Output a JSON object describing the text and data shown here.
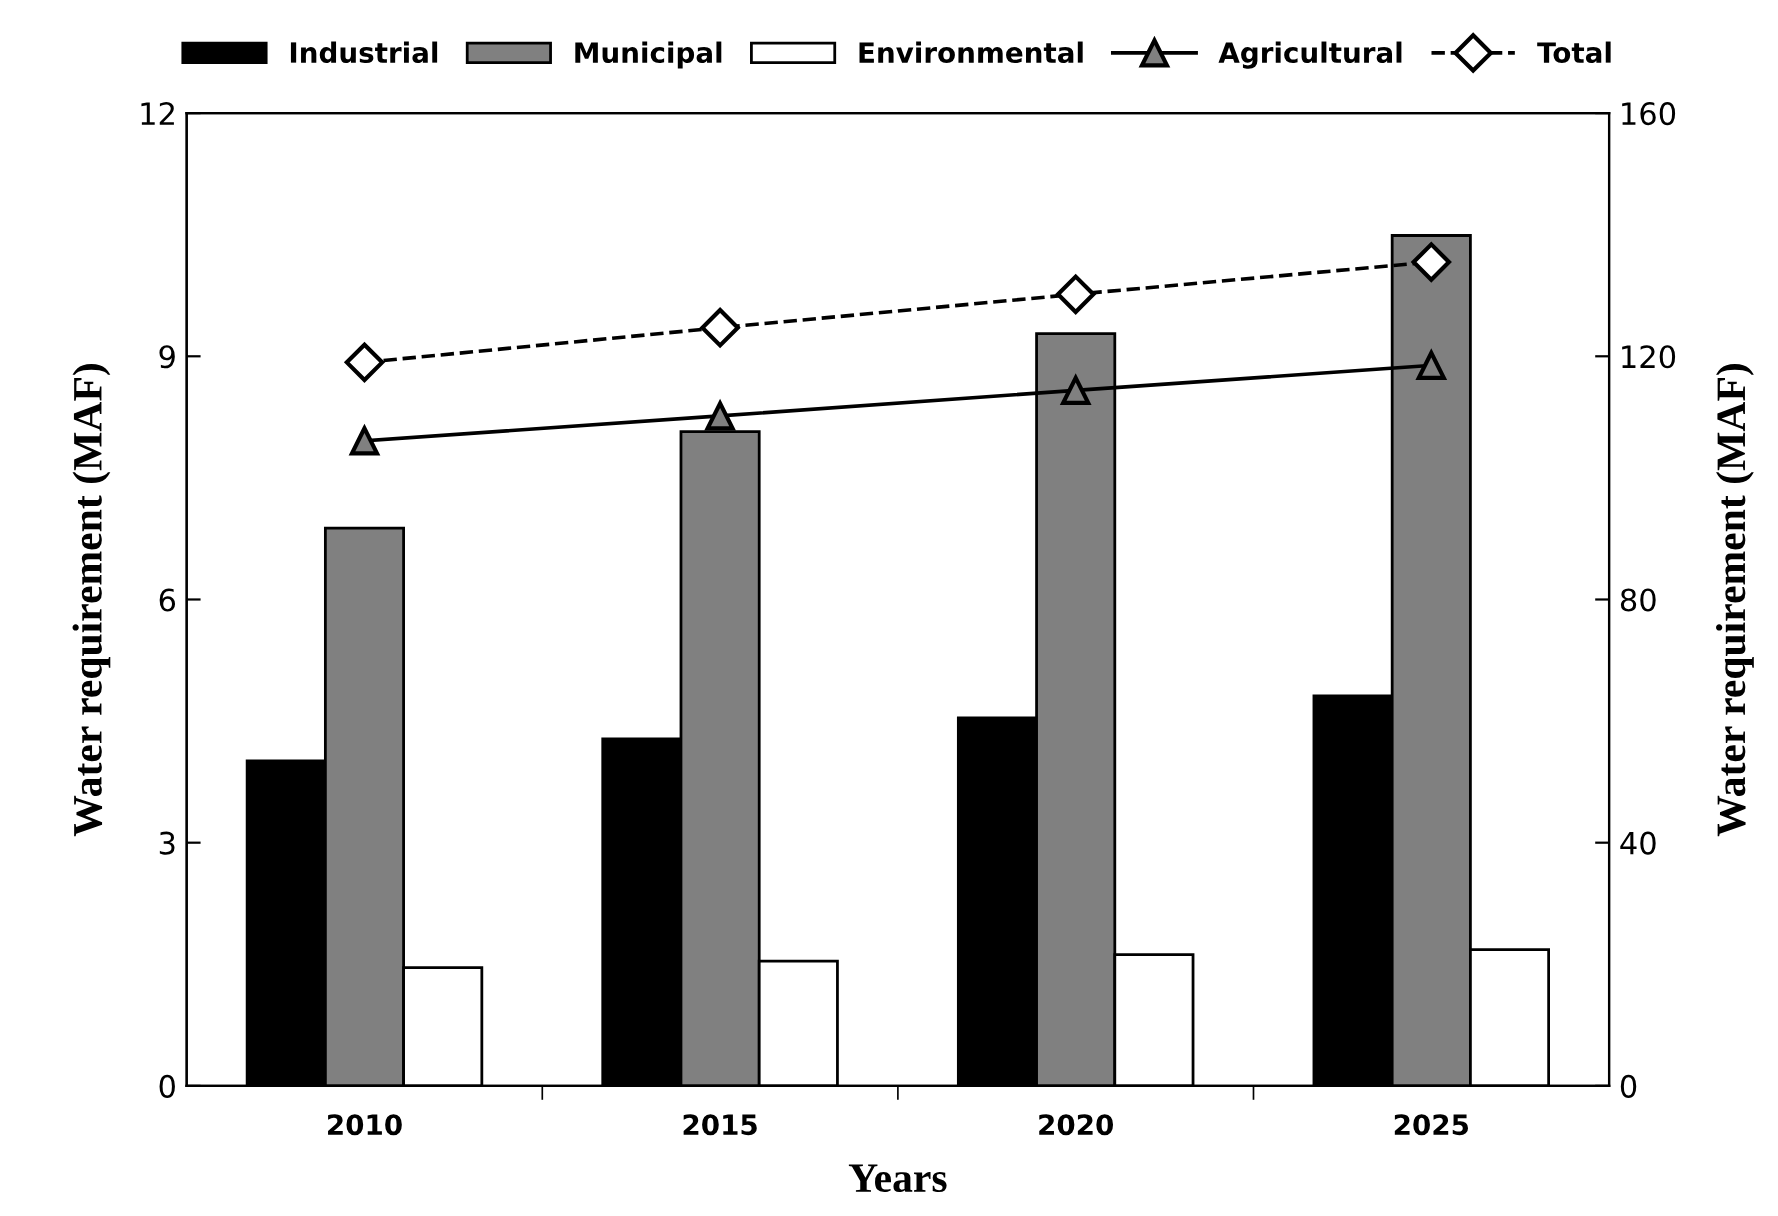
{
  "chart_data": {
    "type": "bar",
    "xlabel": "Years",
    "ylabel": "Water requirement (MAF)",
    "y2label": "Water requirement (MAF)",
    "categories": [
      "2010",
      "2015",
      "2020",
      "2025"
    ],
    "series": [
      {
        "name": "Industrial",
        "color": "#000000",
        "values": [
          4.01,
          4.28,
          4.54,
          4.81
        ]
      },
      {
        "name": "Municipal",
        "color": "#808080",
        "values": [
          6.88,
          8.07,
          9.28,
          10.49
        ]
      },
      {
        "name": "Environmental",
        "color": "#ffffff",
        "values": [
          1.46,
          1.54,
          1.62,
          1.68
        ]
      },
      {
        "name": "Agricultural",
        "type": "line",
        "axis": "y2",
        "color": "#000000",
        "marker": "triangle",
        "line_style": "solid",
        "values": [
          106.1,
          110.2,
          114.4,
          118.5
        ]
      },
      {
        "name": "Total",
        "type": "line",
        "axis": "y2",
        "color": "#000000",
        "marker": "diamond",
        "line_style": "dashed",
        "values": [
          119.0,
          124.7,
          130.2,
          135.5
        ]
      }
    ],
    "ylim": [
      0,
      12
    ],
    "yticks": [
      0,
      3,
      6,
      9,
      12
    ],
    "y2lim": [
      0,
      160
    ],
    "y2ticks": [
      0,
      40,
      80,
      120,
      160
    ],
    "grid": false,
    "legend": "top"
  }
}
